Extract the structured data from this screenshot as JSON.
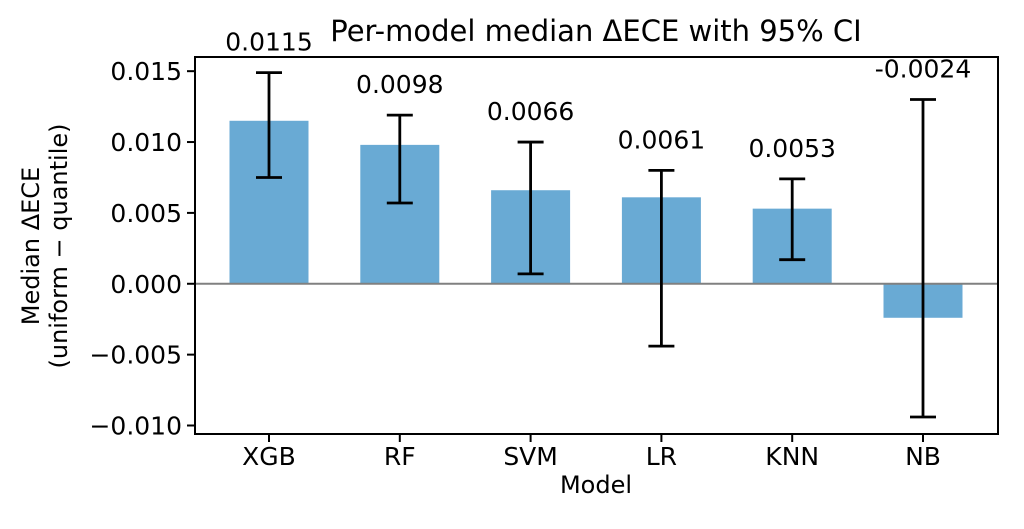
{
  "figure": {
    "title": "Per-model median ΔECE with 95% CI",
    "xlabel": "Model",
    "ylabel_line1": "Median ΔECE",
    "ylabel_line2": "(uniform − quantile)"
  },
  "chart_data": {
    "type": "bar",
    "title": "Per-model median ΔECE with 95% CI",
    "xlabel": "Model",
    "ylabel": "Median ΔECE\n(uniform − quantile)",
    "categories": [
      "XGB",
      "RF",
      "SVM",
      "LR",
      "KNN",
      "NB"
    ],
    "series": [
      {
        "name": "median ΔECE (uniform − quantile)",
        "values": [
          0.0115,
          0.0098,
          0.0066,
          0.0061,
          0.0053,
          -0.0024
        ]
      }
    ],
    "error_bars": {
      "label": "95% CI",
      "ci_low": [
        0.0075,
        0.0057,
        0.0007,
        -0.0044,
        0.0017,
        -0.0094
      ],
      "ci_high": [
        0.0149,
        0.0119,
        0.01,
        0.008,
        0.0074,
        0.013
      ]
    },
    "value_labels": [
      "0.0115",
      "0.0098",
      "0.0066",
      "0.0061",
      "0.0053",
      "-0.0024"
    ],
    "yticks": [
      0.015,
      0.01,
      0.005,
      0.0,
      -0.005,
      -0.01
    ],
    "ytick_labels": [
      "0.015",
      "0.010",
      "0.005",
      "0.000",
      "−0.005",
      "−0.010"
    ],
    "ylim": [
      -0.0106,
      0.016
    ],
    "grid": false,
    "legend": null,
    "zero_line": 0,
    "colors": {
      "bar": "#69aad4",
      "error": "#000000",
      "zero_line": "#808080",
      "spine": "#000000",
      "background": "#ffffff"
    }
  }
}
